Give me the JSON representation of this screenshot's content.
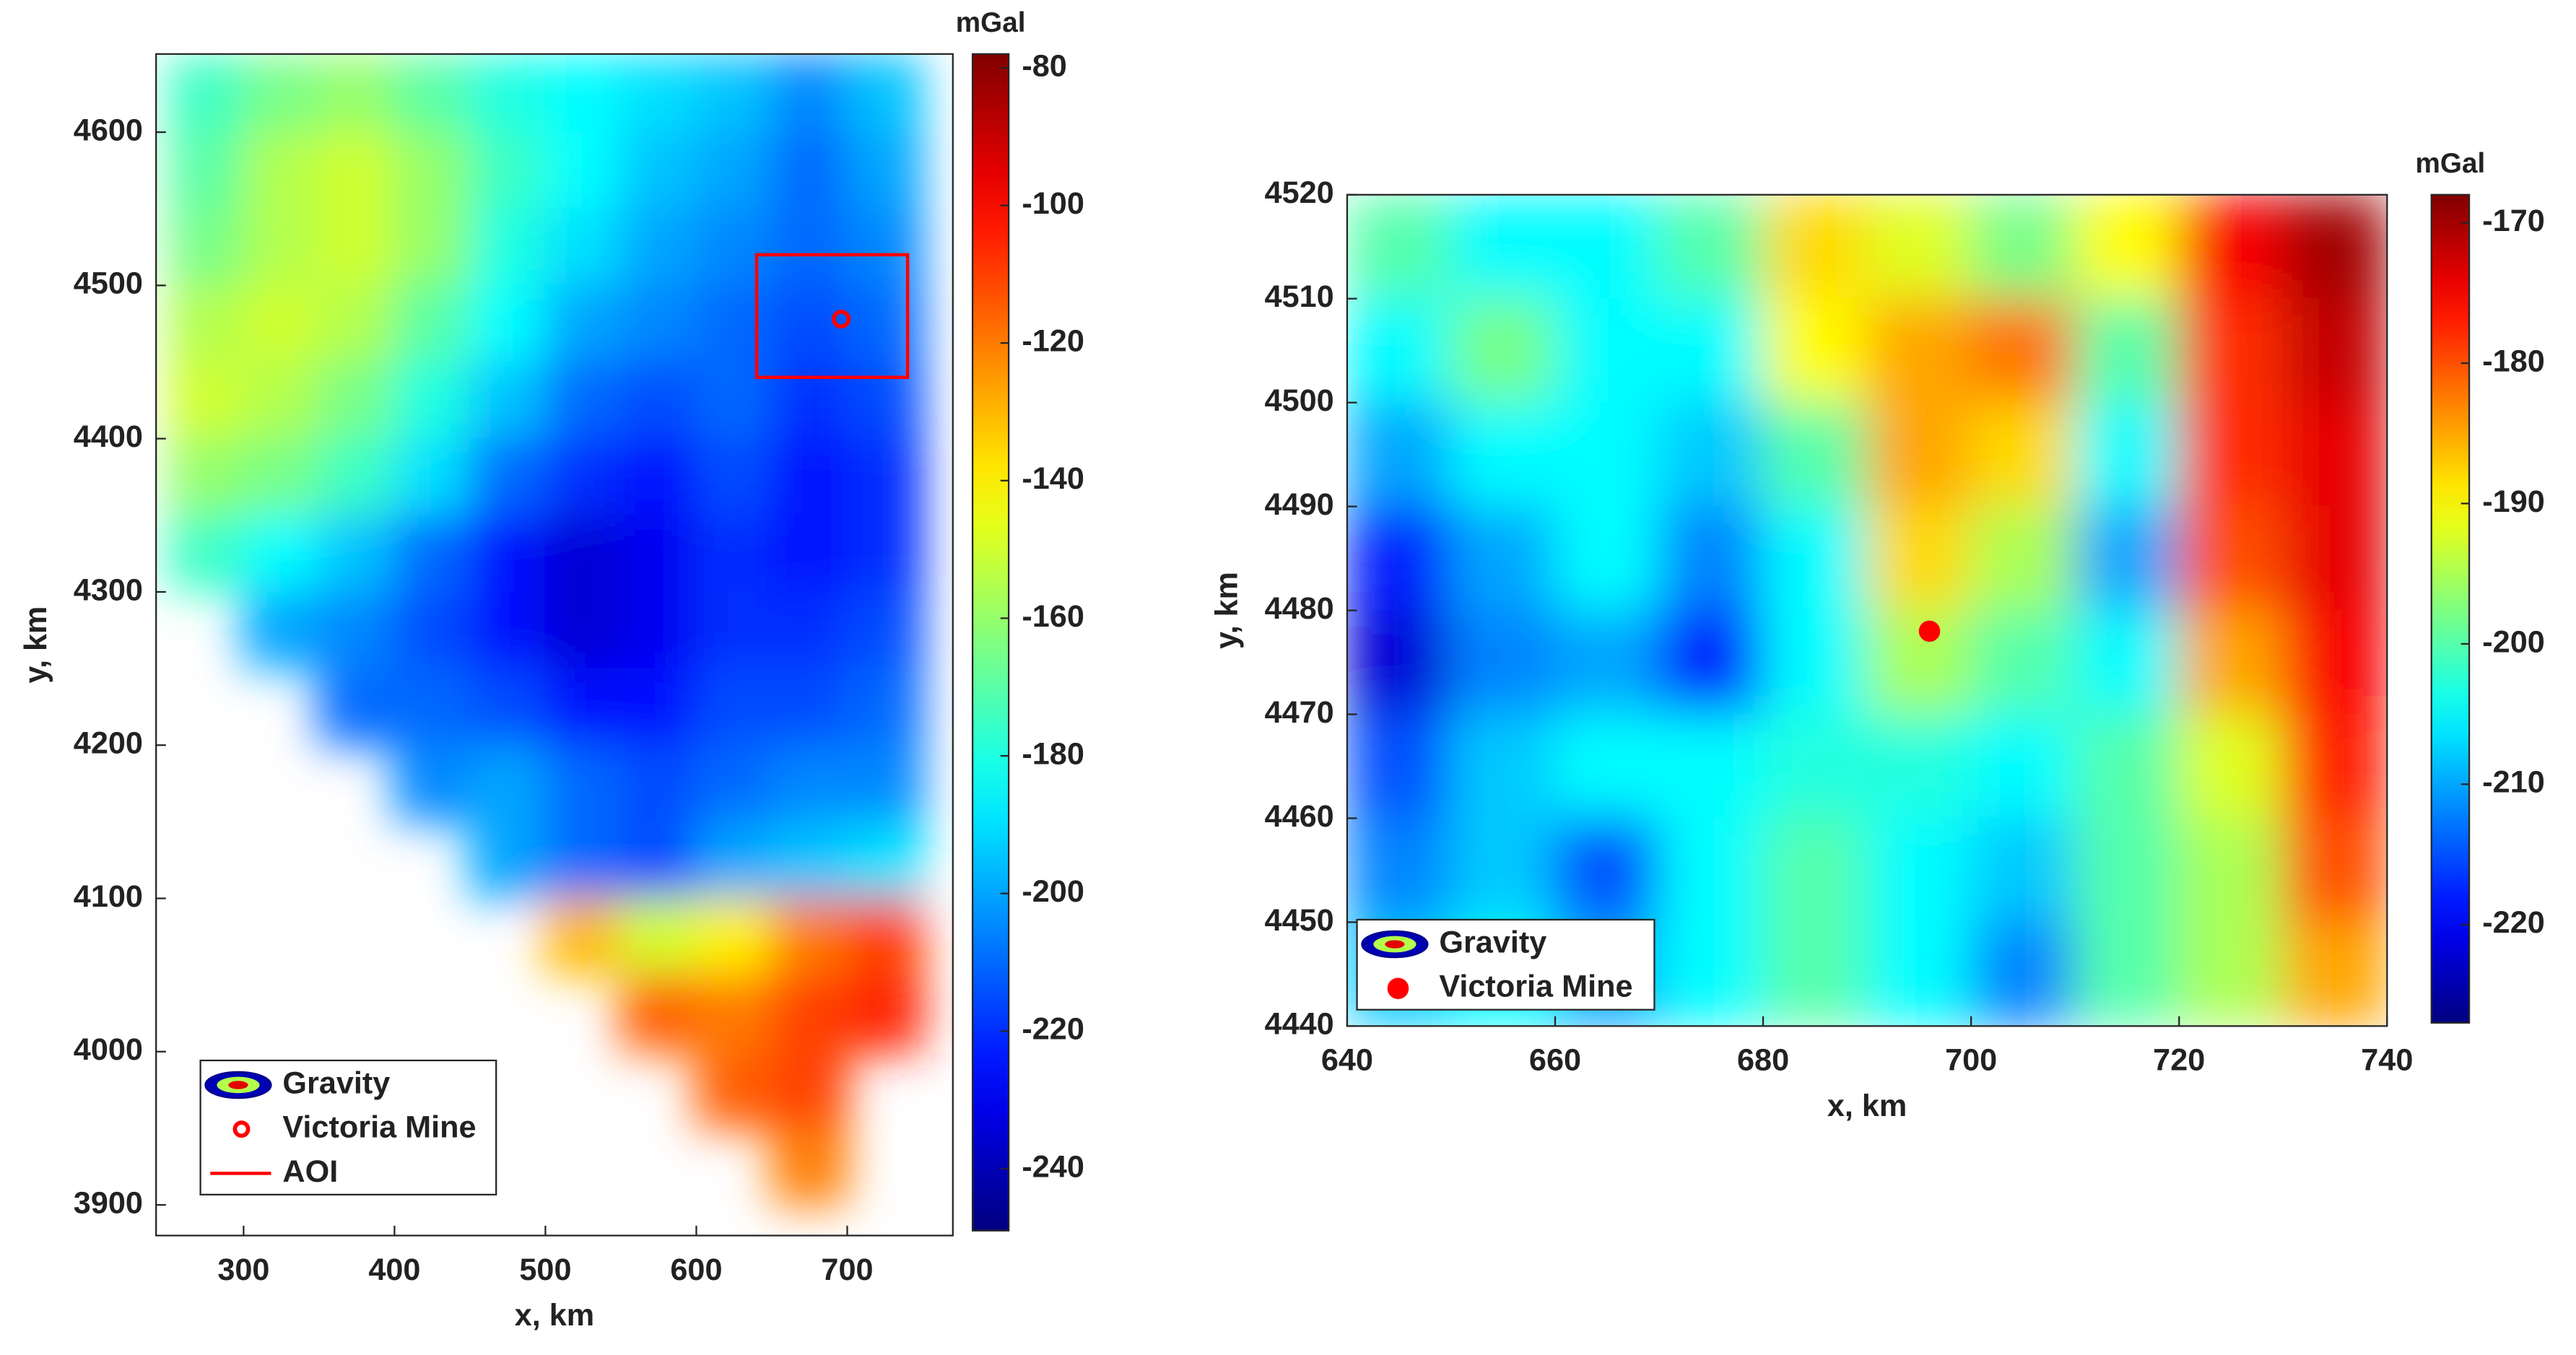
{
  "chart_data": [
    {
      "type": "heatmap",
      "name": "Gravity",
      "colormap": "jet",
      "xlabel": "x, km",
      "ylabel": "y, km",
      "colorbar_label": "mGal",
      "xlim": [
        242,
        770
      ],
      "ylim": [
        3880,
        4651
      ],
      "clim": [
        -249,
        -78
      ],
      "xticks": [
        300,
        400,
        500,
        600,
        700
      ],
      "yticks": [
        3900,
        4000,
        4100,
        4200,
        4300,
        4400,
        4500,
        4600
      ],
      "cticks": [
        -240,
        -220,
        -200,
        -180,
        -160,
        -140,
        -120,
        -100,
        -80
      ],
      "x": [
        275,
        325,
        375,
        425,
        475,
        525,
        575,
        625,
        675,
        725
      ],
      "y": [
        4625,
        4575,
        4525,
        4475,
        4425,
        4375,
        4325,
        4275,
        4225,
        4175,
        4125,
        4075,
        4025,
        3975,
        3925
      ],
      "z": [
        [
          -175,
          -165,
          -160,
          -170,
          -180,
          -185,
          -190,
          -195,
          -205,
          -195
        ],
        [
          -170,
          -155,
          -150,
          -160,
          -175,
          -185,
          -195,
          -200,
          -210,
          -200
        ],
        [
          -165,
          -155,
          -150,
          -160,
          -180,
          -190,
          -200,
          -205,
          -210,
          -205
        ],
        [
          -155,
          -150,
          -155,
          -170,
          -185,
          -200,
          -205,
          -210,
          -215,
          -210
        ],
        [
          -150,
          -155,
          -165,
          -180,
          -195,
          -210,
          -215,
          -210,
          -220,
          -215
        ],
        [
          -160,
          -165,
          -175,
          -190,
          -210,
          -220,
          -225,
          -215,
          -225,
          -220
        ],
        [
          -175,
          -185,
          -195,
          -210,
          -225,
          -235,
          -230,
          -220,
          -225,
          -220
        ],
        [
          null,
          -200,
          -205,
          -215,
          -225,
          -235,
          -230,
          -220,
          -220,
          -215
        ],
        [
          null,
          null,
          -210,
          -210,
          -215,
          -225,
          -225,
          -215,
          -215,
          -210
        ],
        [
          null,
          null,
          null,
          -205,
          -200,
          -210,
          -215,
          -210,
          -205,
          -205
        ],
        [
          null,
          null,
          null,
          null,
          -200,
          -210,
          -215,
          -200,
          -195,
          -190
        ],
        [
          null,
          null,
          null,
          null,
          null,
          -130,
          -150,
          -140,
          -120,
          -110
        ],
        [
          null,
          null,
          null,
          null,
          null,
          null,
          -115,
          -120,
          -110,
          -105
        ],
        [
          null,
          null,
          null,
          null,
          null,
          null,
          null,
          -115,
          -110,
          null
        ],
        [
          null,
          null,
          null,
          null,
          null,
          null,
          null,
          null,
          -120,
          null
        ]
      ],
      "markers": [
        {
          "name": "Victoria Mine",
          "x": 696,
          "y": 4478,
          "filled": false,
          "color": "#ff0000"
        }
      ],
      "aoi": {
        "name": "AOI",
        "x": [
          640,
          740
        ],
        "y": [
          4440,
          4520
        ],
        "color": "#ff0000"
      }
    },
    {
      "type": "heatmap",
      "name": "Gravity",
      "colormap": "jet",
      "xlabel": "x, km",
      "ylabel": "y, km",
      "colorbar_label": "mGal",
      "xlim": [
        640,
        740
      ],
      "ylim": [
        4440,
        4520
      ],
      "clim": [
        -227,
        -168
      ],
      "xticks": [
        640,
        660,
        680,
        700,
        720,
        740
      ],
      "yticks": [
        4440,
        4450,
        4460,
        4470,
        4480,
        4490,
        4500,
        4510,
        4520
      ],
      "cticks": [
        -220,
        -210,
        -200,
        -190,
        -180,
        -170
      ],
      "x": [
        645,
        655,
        665,
        675,
        685,
        695,
        705,
        715,
        725,
        735
      ],
      "y": [
        4515,
        4505,
        4495,
        4485,
        4475,
        4465,
        4455,
        4445
      ],
      "z": [
        [
          -200,
          -205,
          -205,
          -200,
          -188,
          -192,
          -198,
          -190,
          -175,
          -170
        ],
        [
          -205,
          -198,
          -205,
          -205,
          -190,
          -185,
          -182,
          -200,
          -178,
          -172
        ],
        [
          -210,
          -205,
          -205,
          -208,
          -200,
          -185,
          -188,
          -205,
          -178,
          -174
        ],
        [
          -218,
          -210,
          -205,
          -212,
          -205,
          -188,
          -195,
          -210,
          -180,
          -174
        ],
        [
          -222,
          -212,
          -210,
          -218,
          -205,
          -195,
          -200,
          -205,
          -185,
          -175
        ],
        [
          -215,
          -208,
          -205,
          -205,
          -203,
          -203,
          -205,
          -200,
          -192,
          -177
        ],
        [
          -212,
          -208,
          -215,
          -205,
          -200,
          -205,
          -208,
          -200,
          -195,
          -180
        ],
        [
          -208,
          -205,
          -210,
          -205,
          -200,
          -205,
          -212,
          -200,
          -195,
          -185
        ]
      ],
      "markers": [
        {
          "name": "Victoria Mine",
          "x": 696,
          "y": 4478,
          "filled": true,
          "color": "#ff0000"
        }
      ]
    }
  ]
}
